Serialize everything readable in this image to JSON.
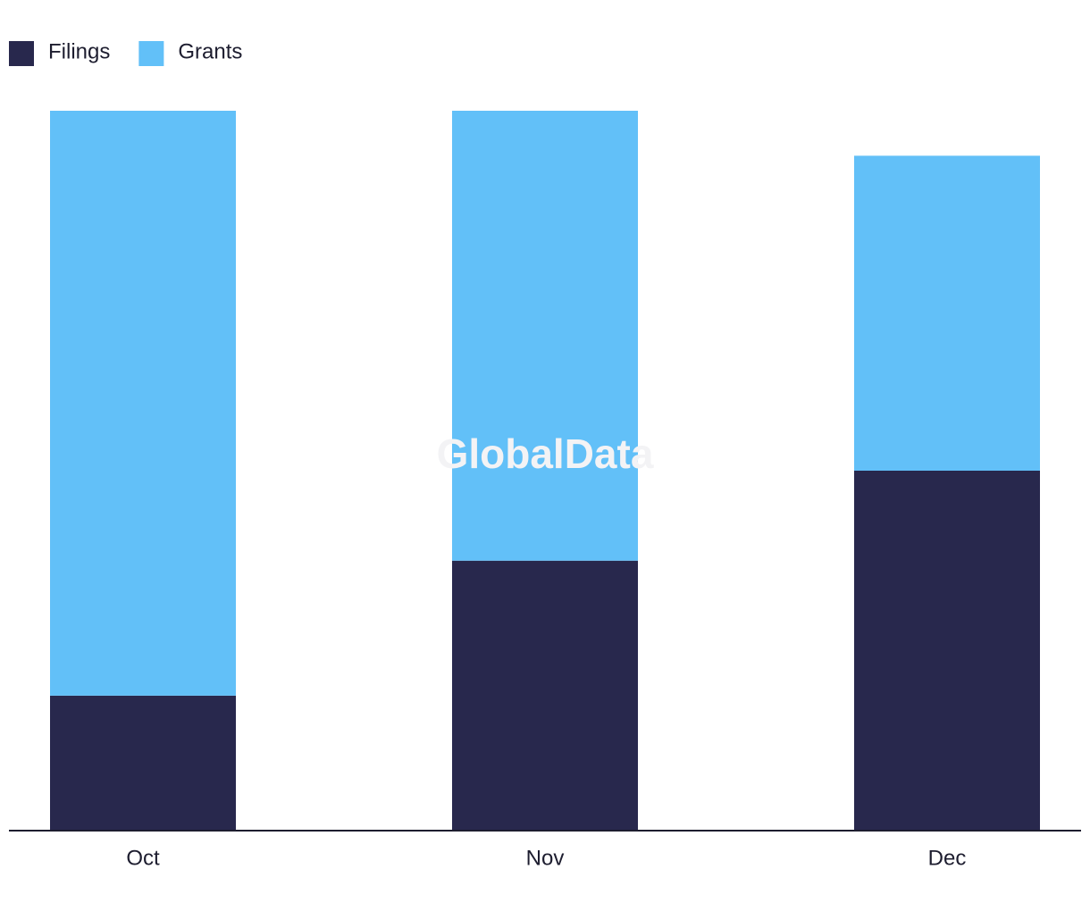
{
  "chart_data": {
    "type": "stacked-bar",
    "categories": [
      "Oct",
      "Nov",
      "Dec"
    ],
    "series": [
      {
        "name": "Filings",
        "color": "#28284d",
        "values": [
          3,
          6,
          8
        ]
      },
      {
        "name": "Grants",
        "color": "#62c0f8",
        "values": [
          13,
          10,
          7
        ]
      }
    ],
    "ylim": [
      0,
      16
    ],
    "watermark": "GlobalData"
  }
}
